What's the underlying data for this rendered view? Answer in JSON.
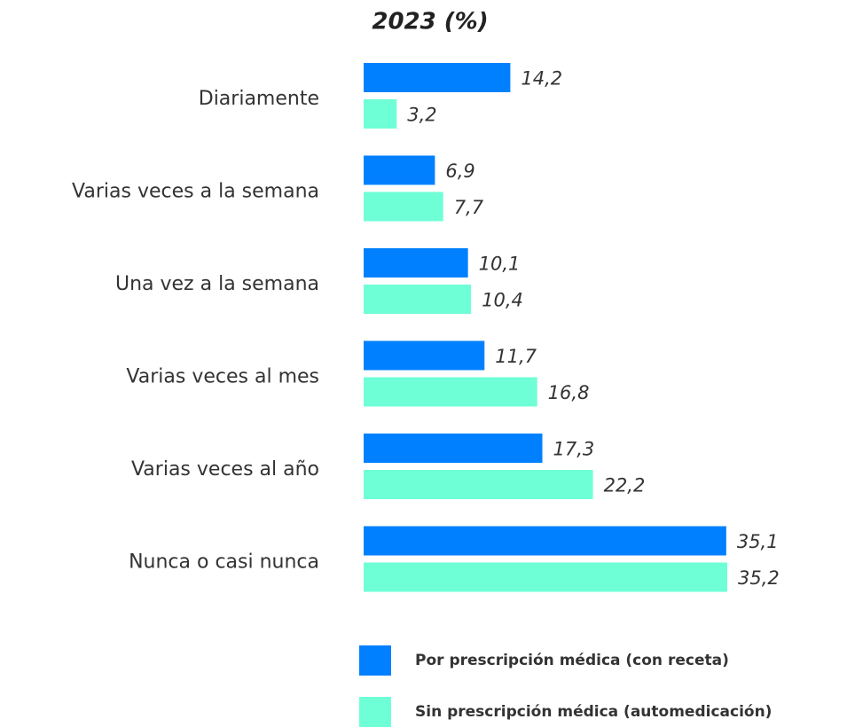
{
  "chart_data": {
    "type": "bar",
    "orientation": "horizontal",
    "title": "2023 (%)",
    "categories": [
      "Diariamente",
      "Varias veces a la semana",
      "Una vez a la semana",
      "Varias veces al mes",
      "Varias veces al año",
      "Nunca o casi nunca"
    ],
    "series": [
      {
        "name": "Por prescripción médica (con receta)",
        "color": "#0080ff",
        "values": [
          14.2,
          6.9,
          10.1,
          11.7,
          17.3,
          35.1
        ],
        "value_labels": [
          "14,2",
          "6,9",
          "10,1",
          "11,7",
          "17,3",
          "35,1"
        ]
      },
      {
        "name": "Sin prescripción médica (automedicación)",
        "color": "#6effd6",
        "values": [
          3.2,
          7.7,
          10.4,
          16.8,
          22.2,
          35.2
        ],
        "value_labels": [
          "3,2",
          "7,7",
          "10,4",
          "16,8",
          "22,2",
          "35,2"
        ]
      }
    ]
  }
}
